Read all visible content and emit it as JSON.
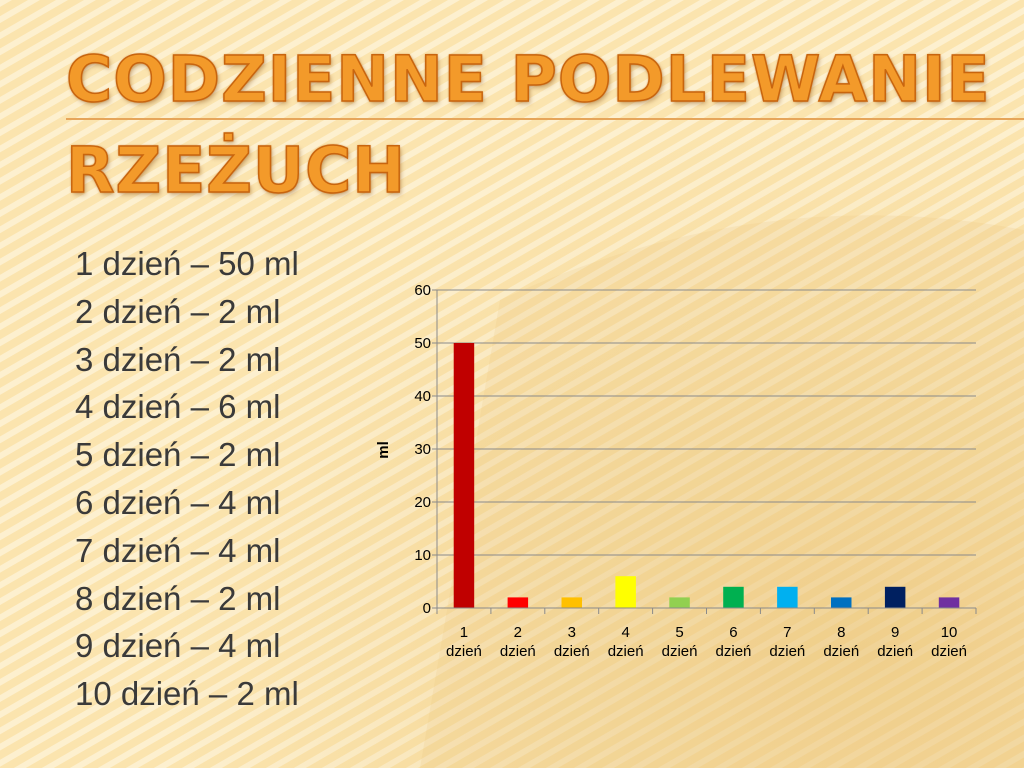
{
  "slide": {
    "title_line_1": "CODZIENNE PODLEWANIE",
    "title_line_2": "RZEŻUCH",
    "items": [
      "1 dzień – 50 ml",
      "2 dzień – 2 ml",
      "3 dzień – 2 ml",
      "4 dzień – 6 ml",
      "5 dzień – 2 ml",
      "6 dzień – 4 ml",
      "7 dzień – 4 ml",
      "8 dzień – 2 ml",
      "9 dzień – 4 ml",
      "10 dzień – 2 ml"
    ]
  },
  "colors": {
    "title": "#f39a2a",
    "text": "#3a3a3a",
    "background": "#fbe6b4"
  },
  "chart_data": {
    "type": "bar",
    "categories": [
      [
        "1",
        "dzień"
      ],
      [
        "2",
        "dzień"
      ],
      [
        "3",
        "dzień"
      ],
      [
        "4",
        "dzień"
      ],
      [
        "5",
        "dzień"
      ],
      [
        "6",
        "dzień"
      ],
      [
        "7",
        "dzień"
      ],
      [
        "8",
        "dzień"
      ],
      [
        "9",
        "dzień"
      ],
      [
        "10",
        "dzień"
      ]
    ],
    "values": [
      50,
      2,
      2,
      6,
      2,
      4,
      4,
      2,
      4,
      2
    ],
    "bar_colors": [
      "#c00000",
      "#ff0000",
      "#ffc000",
      "#ffff00",
      "#92d050",
      "#00b050",
      "#00b0f0",
      "#0070c0",
      "#002060",
      "#7030a0"
    ],
    "title": "",
    "xlabel": "",
    "ylabel": "ml",
    "ylim": [
      0,
      60
    ],
    "yticks": [
      0,
      10,
      20,
      30,
      40,
      50,
      60
    ],
    "grid": true,
    "legend": "none"
  }
}
